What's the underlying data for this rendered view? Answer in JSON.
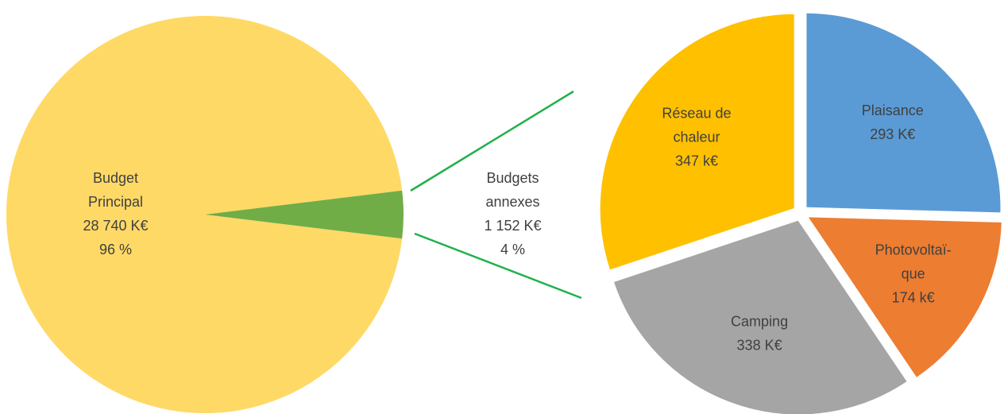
{
  "chart_data": [
    {
      "type": "pie",
      "categories": [
        [
          "Budget",
          "Principal"
        ],
        [
          "Budgets",
          "annexes"
        ]
      ],
      "values": [
        28740,
        1152
      ],
      "value_labels": [
        "28 740 K€",
        "1 152 K€"
      ],
      "percents": [
        96,
        4
      ],
      "percent_labels": [
        "96 %",
        "4 %"
      ],
      "colors": [
        "#ffd966",
        "#70ad47"
      ]
    },
    {
      "type": "pie",
      "categories": [
        [
          "Plaisance"
        ],
        [
          "Photovoltaï-",
          "que"
        ],
        [
          "Camping"
        ],
        [
          "Réseau de",
          "chaleur"
        ]
      ],
      "values": [
        293,
        174,
        338,
        347
      ],
      "value_labels": [
        "293 K€",
        "174 k€",
        "338 K€",
        "347 k€"
      ],
      "colors": [
        "#5b9bd5",
        "#ed7d31",
        "#a5a5a5",
        "#ffc000"
      ]
    }
  ]
}
